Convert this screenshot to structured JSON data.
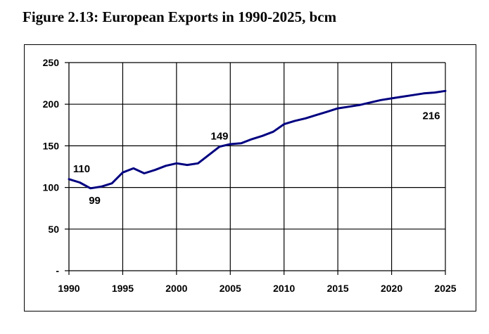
{
  "figure": {
    "title": "Figure 2.13: European Exports in 1990-2025, bcm"
  },
  "chart_data": {
    "type": "line",
    "title": "Figure 2.13: European Exports in 1990-2025, bcm",
    "xlabel": "",
    "ylabel": "",
    "xlim": [
      1990,
      2025
    ],
    "ylim": [
      0,
      250
    ],
    "grid": true,
    "x_ticks": [
      "1990",
      "1995",
      "2000",
      "2005",
      "2010",
      "2015",
      "2020",
      "2025"
    ],
    "x_tick_values": [
      1990,
      1995,
      2000,
      2005,
      2010,
      2015,
      2020,
      2025
    ],
    "y_ticks": [
      "-",
      "50",
      "100",
      "150",
      "200",
      "250"
    ],
    "y_tick_values": [
      0,
      50,
      100,
      150,
      200,
      250
    ],
    "series": [
      {
        "name": "European Exports",
        "color": "#000080",
        "x": [
          1990,
          1991,
          1992,
          1993,
          1994,
          1995,
          1996,
          1997,
          1998,
          1999,
          2000,
          2001,
          2002,
          2003,
          2004,
          2005,
          2006,
          2007,
          2008,
          2009,
          2010,
          2011,
          2012,
          2013,
          2014,
          2015,
          2016,
          2017,
          2018,
          2019,
          2020,
          2021,
          2022,
          2023,
          2024,
          2025
        ],
        "values": [
          110,
          106,
          99,
          101,
          105,
          118,
          123,
          117,
          121,
          126,
          129,
          127,
          129,
          139,
          149,
          152,
          153,
          158,
          162,
          167,
          176,
          180,
          183,
          187,
          191,
          195,
          197,
          199,
          202,
          205,
          207,
          209,
          211,
          213,
          214,
          216
        ]
      }
    ],
    "annotations": [
      {
        "x": 1990,
        "y": 110,
        "text": "110",
        "position": "above"
      },
      {
        "x": 1992,
        "y": 99,
        "text": "99",
        "position": "below"
      },
      {
        "x": 2004,
        "y": 149,
        "text": "149",
        "position": "above"
      },
      {
        "x": 2025,
        "y": 216,
        "text": "216",
        "position": "below-left"
      }
    ]
  }
}
